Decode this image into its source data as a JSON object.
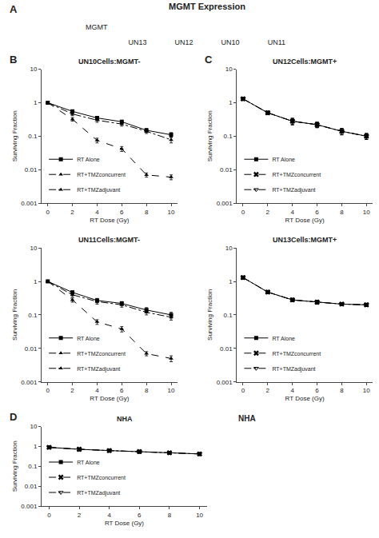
{
  "chart_data": [
    {
      "type": "blot",
      "title": "MGMT Expression",
      "categories": [
        "UN13",
        "UN12",
        "UN10",
        "UN11"
      ],
      "annotations": [
        {
          "text": "A"
        },
        {
          "text": "MGMT"
        }
      ],
      "tick_labels": "x"
    },
    {
      "type": "line",
      "title": "UN10Cells:MGMT-",
      "x": [
        0,
        2,
        4,
        6,
        8,
        10
      ],
      "series": [
        {
          "name": "RT Alone",
          "color": "black",
          "marker": "square",
          "line_style": "solid",
          "values": [
            1.0,
            0.55,
            0.35,
            0.27,
            0.15,
            0.11
          ],
          "errors": [
            0.0,
            0.05,
            0.04,
            0.03,
            0.02,
            0.018
          ]
        },
        {
          "name": "RT+TMZconcurrent",
          "color": "black",
          "marker": "triangle-up",
          "line_style": "dash",
          "values": [
            1.0,
            0.32,
            0.075,
            0.042,
            0.007,
            0.006
          ],
          "errors": [
            0.0,
            0.04,
            0.012,
            0.007,
            0.001,
            0.001
          ]
        },
        {
          "name": "RT+TMZadjuvant",
          "color": "black",
          "marker": "triangle-up",
          "line_style": "dashdot",
          "values": [
            1.0,
            0.46,
            0.3,
            0.23,
            0.14,
            0.078
          ],
          "errors": [
            0.0,
            0.05,
            0.04,
            0.03,
            0.02,
            0.015
          ]
        }
      ],
      "xlabel": "RT Dose (Gy)",
      "ylabel": "Surviving Fraction",
      "xlim": [
        -0.5,
        10.5
      ],
      "ylim": [
        0.001,
        10
      ],
      "xticks": [
        0,
        2,
        4,
        6,
        8,
        10
      ],
      "yticks": [
        0.001,
        0.01,
        0.1,
        1,
        10
      ],
      "log": "y",
      "grid": false,
      "legend": "lower left",
      "annotations": [
        {
          "text": "B"
        }
      ]
    },
    {
      "type": "line",
      "title": "UN12Cells:MGMT+",
      "x": [
        0,
        2,
        4,
        6,
        8,
        10
      ],
      "series": [
        {
          "name": "RT Alone",
          "color": "black",
          "marker": "square",
          "line_style": "solid",
          "values": [
            1.3,
            0.5,
            0.28,
            0.22,
            0.14,
            0.1
          ],
          "errors": [
            0.1,
            0.05,
            0.06,
            0.04,
            0.03,
            0.02
          ]
        },
        {
          "name": "RT+TMZconcurrent",
          "color": "black",
          "marker": "x",
          "line_style": "dash",
          "values": [
            1.3,
            0.5,
            0.28,
            0.22,
            0.14,
            0.1
          ],
          "errors": [
            0.1,
            0.05,
            0.06,
            0.04,
            0.03,
            0.02
          ]
        },
        {
          "name": "RT+TMZadjuvant",
          "color": "black",
          "marker": "triangle-down-open",
          "line_style": "dashdot",
          "values": [
            1.3,
            0.5,
            0.28,
            0.22,
            0.14,
            0.1
          ],
          "errors": [
            0.1,
            0.05,
            0.06,
            0.04,
            0.03,
            0.02
          ]
        }
      ],
      "xlabel": "RT Dose (Gy)",
      "ylabel": "Surviving Fraction",
      "xlim": [
        -0.5,
        10.5
      ],
      "ylim": [
        0.001,
        10
      ],
      "xticks": [
        0,
        2,
        4,
        6,
        8,
        10
      ],
      "yticks": [
        0.001,
        0.01,
        0.1,
        1,
        10
      ],
      "log": "y",
      "grid": false,
      "legend": "lower left",
      "annotations": [
        {
          "text": "C"
        }
      ]
    },
    {
      "type": "line",
      "title": "UN11Cells:MGMT-",
      "x": [
        0,
        2,
        4,
        6,
        8,
        10
      ],
      "series": [
        {
          "name": "RT Alone",
          "color": "black",
          "marker": "square",
          "line_style": "solid",
          "values": [
            1.0,
            0.47,
            0.27,
            0.22,
            0.14,
            0.1
          ],
          "errors": [
            0.0,
            0.05,
            0.04,
            0.03,
            0.025,
            0.02
          ]
        },
        {
          "name": "RT+TMZconcurrent",
          "color": "black",
          "marker": "triangle-up",
          "line_style": "dash",
          "values": [
            1.0,
            0.28,
            0.062,
            0.038,
            0.007,
            0.005
          ],
          "errors": [
            0.0,
            0.04,
            0.01,
            0.007,
            0.001,
            0.001
          ]
        },
        {
          "name": "RT+TMZadjuvant",
          "color": "black",
          "marker": "triangle-up",
          "line_style": "dashdot",
          "values": [
            1.0,
            0.4,
            0.25,
            0.2,
            0.12,
            0.085
          ],
          "errors": [
            0.0,
            0.05,
            0.04,
            0.03,
            0.02,
            0.015
          ]
        }
      ],
      "xlabel": "RT Dose (Gy)",
      "ylabel": "Surviving Fraction",
      "xlim": [
        -0.5,
        10.5
      ],
      "ylim": [
        0.001,
        10
      ],
      "xticks": [
        0,
        2,
        4,
        6,
        8,
        10
      ],
      "yticks": [
        0.001,
        0.01,
        0.1,
        1,
        10
      ],
      "log": "y",
      "grid": false,
      "legend": "lower left"
    },
    {
      "type": "line",
      "title": "UN13Cells:MGMT+",
      "x": [
        0,
        2,
        4,
        6,
        8,
        10
      ],
      "series": [
        {
          "name": "RT Alone",
          "color": "black",
          "marker": "square",
          "line_style": "solid",
          "values": [
            1.3,
            0.48,
            0.28,
            0.24,
            0.21,
            0.2
          ],
          "errors": [
            0.1,
            0.04,
            0.03,
            0.03,
            0.02,
            0.02
          ]
        },
        {
          "name": "RT+TMZconcurrent",
          "color": "black",
          "marker": "x",
          "line_style": "dash",
          "values": [
            1.3,
            0.48,
            0.28,
            0.24,
            0.21,
            0.2
          ],
          "errors": [
            0.1,
            0.04,
            0.03,
            0.03,
            0.02,
            0.02
          ]
        },
        {
          "name": "RT+TMZadjuvant",
          "color": "black",
          "marker": "triangle-down-open",
          "line_style": "dashdot",
          "values": [
            1.3,
            0.48,
            0.28,
            0.24,
            0.21,
            0.2
          ],
          "errors": [
            0.1,
            0.04,
            0.03,
            0.03,
            0.02,
            0.02
          ]
        }
      ],
      "xlabel": "RT Dose (Gy)",
      "ylabel": "Surviving Fraction",
      "xlim": [
        -0.5,
        10.5
      ],
      "ylim": [
        0.001,
        10
      ],
      "xticks": [
        0,
        2,
        4,
        6,
        8,
        10
      ],
      "yticks": [
        0.001,
        0.01,
        0.1,
        1,
        10
      ],
      "log": "y",
      "grid": false,
      "legend": "lower left"
    },
    {
      "type": "line",
      "title": "NHA",
      "x": [
        0,
        2,
        4,
        6,
        8,
        10
      ],
      "series": [
        {
          "name": "RT Alone",
          "color": "black",
          "marker": "square",
          "line_style": "solid",
          "values": [
            0.9,
            0.72,
            0.62,
            0.55,
            0.48,
            0.42
          ],
          "errors": [
            0.05,
            0.04,
            0.03,
            0.03,
            0.02,
            0.02
          ]
        },
        {
          "name": "RT+TMZconcurrent",
          "color": "black",
          "marker": "x",
          "line_style": "dash",
          "values": [
            0.9,
            0.72,
            0.62,
            0.55,
            0.48,
            0.42
          ],
          "errors": [
            0.05,
            0.04,
            0.03,
            0.03,
            0.02,
            0.02
          ]
        },
        {
          "name": "RT+TMZadjuvant",
          "color": "black",
          "marker": "triangle-down-open",
          "line_style": "dashdot",
          "values": [
            0.9,
            0.72,
            0.62,
            0.55,
            0.48,
            0.42
          ],
          "errors": [
            0.05,
            0.04,
            0.03,
            0.03,
            0.02,
            0.02
          ]
        }
      ],
      "xlabel": "RT Dose (Gy)",
      "ylabel": "Surviving Fraction",
      "xlim": [
        -0.5,
        10.5
      ],
      "ylim": [
        0.001,
        10
      ],
      "xticks": [
        0,
        2,
        4,
        6,
        8,
        10
      ],
      "yticks": [
        0.001,
        0.01,
        0.1,
        1,
        10
      ],
      "log": "y",
      "grid": false,
      "legend": "lower left",
      "annotations": [
        {
          "text": "D"
        },
        {
          "text": "NHA"
        }
      ]
    }
  ]
}
